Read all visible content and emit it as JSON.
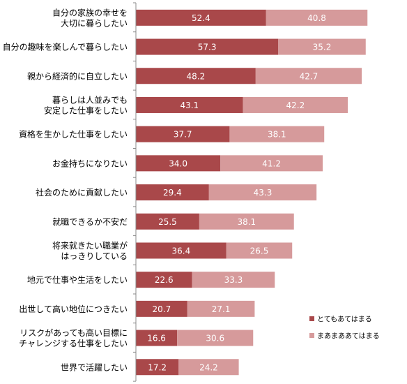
{
  "chart_data": {
    "type": "bar",
    "orientation": "horizontal",
    "stacked": true,
    "categories": [
      [
        "自分の家族の幸せを",
        "大切に暮らしたい"
      ],
      [
        "自分の趣味を楽しんで暮らしたい"
      ],
      [
        "親から経済的に自立したい"
      ],
      [
        "暮らしは人並みでも",
        "安定した仕事をしたい"
      ],
      [
        "資格を生かした仕事をしたい"
      ],
      [
        "お金持ちになりたい"
      ],
      [
        "社会のために貢献したい"
      ],
      [
        "就職できるか不安だ"
      ],
      [
        "将来就きたい職業が",
        "はっきりしている"
      ],
      [
        "地元で仕事や生活をしたい"
      ],
      [
        "出世して高い地位につきたい"
      ],
      [
        "リスクがあっても高い目標に",
        "チャレンジする仕事をしたい"
      ],
      [
        "世界で活躍したい"
      ]
    ],
    "series": [
      {
        "name": "とてもあてはまる",
        "color": "#a9484a",
        "values": [
          52.4,
          57.3,
          48.2,
          43.1,
          37.7,
          34.0,
          29.4,
          25.5,
          36.4,
          22.6,
          20.7,
          16.6,
          17.2
        ],
        "labels": [
          "52.4",
          "57.3",
          "48.2",
          "43.1",
          "37.7",
          "34.0",
          "29.4",
          "25.5",
          "36.4",
          "22.6",
          "20.7",
          "16.6",
          "17.2"
        ]
      },
      {
        "name": "まあまああてはまる",
        "color": "#d69a9b",
        "values": [
          40.8,
          35.2,
          42.7,
          42.2,
          38.1,
          41.2,
          43.3,
          38.1,
          26.5,
          33.3,
          27.1,
          30.6,
          24.2
        ],
        "labels": [
          "40.8",
          "35.2",
          "42.7",
          "42.2",
          "38.1",
          "41.2",
          "43.3",
          "38.1",
          "26.5",
          "33.3",
          "27.1",
          "30.6",
          "24.2"
        ]
      }
    ],
    "xlim": [
      0,
      100
    ],
    "grid": false,
    "legend_position": "right"
  }
}
